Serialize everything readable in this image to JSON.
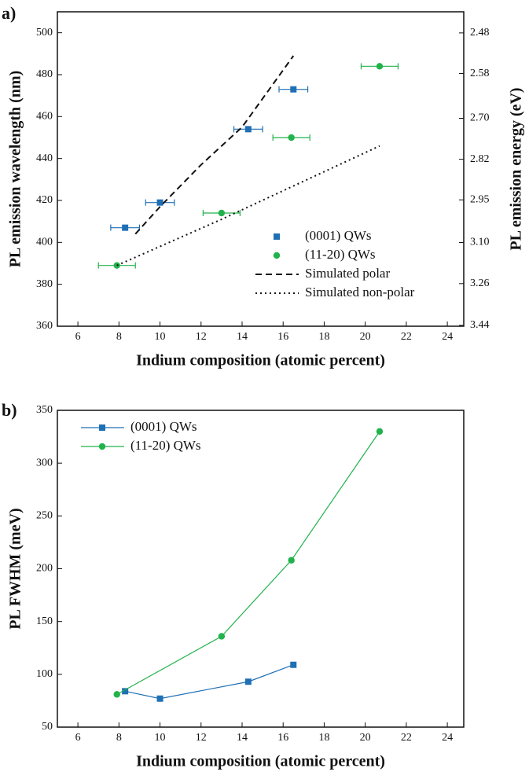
{
  "chart_data": [
    {
      "type": "scatter",
      "panel_label": "a)",
      "xlabel": "Indium composition (atomic percent)",
      "ylabel": "PL emission wavelength (nm)",
      "y2label": "PL emission energy (eV)",
      "xlim": [
        5,
        24.8
      ],
      "xticks": [
        6,
        8,
        10,
        12,
        14,
        16,
        18,
        20,
        22,
        24
      ],
      "ylim": [
        360,
        510
      ],
      "yticks": [
        360,
        380,
        400,
        420,
        440,
        460,
        480,
        500
      ],
      "y2lim": [
        3.444,
        2.431
      ],
      "y2scale": "reciprocal",
      "y2ticks": [
        2.48,
        2.58,
        {
          "value": 2.7,
          "label": "2.70"
        },
        2.82,
        2.95,
        {
          "value": 3.1,
          "label": "3.10"
        },
        3.26,
        3.44
      ],
      "legend": "lower right",
      "series": [
        {
          "name": "(0001) QWs",
          "color": "#1f6fb5",
          "marker": "square",
          "line": "none",
          "x": [
            8.3,
            10,
            14.3,
            16.5
          ],
          "values": [
            407,
            419,
            454,
            473
          ],
          "xerr": [
            0.7,
            0.7,
            0.7,
            0.7
          ]
        },
        {
          "name": "(11-20) QWs",
          "color": "#22b24c",
          "marker": "circle",
          "line": "none",
          "x": [
            7.9,
            13,
            16.4,
            20.7
          ],
          "values": [
            389,
            414,
            450,
            484
          ],
          "xerr": [
            0.9,
            0.9,
            0.9,
            0.9
          ]
        },
        {
          "name": "Simulated polar",
          "color": "#111111",
          "marker": "none",
          "line": "dashed",
          "x": [
            8.8,
            10,
            12,
            14,
            16.5
          ],
          "values": [
            404,
            417,
            437,
            455,
            489
          ]
        },
        {
          "name": "Simulated non-polar",
          "color": "#111111",
          "marker": "none",
          "line": "dotted",
          "x": [
            7.9,
            13,
            20.7
          ],
          "values": [
            389,
            411,
            446
          ]
        }
      ]
    },
    {
      "type": "line",
      "panel_label": "b)",
      "xlabel": "Indium composition (atomic percent)",
      "ylabel": "PL FWHM (meV)",
      "xlim": [
        5,
        24.8
      ],
      "xticks": [
        6,
        8,
        10,
        12,
        14,
        16,
        18,
        20,
        22,
        24
      ],
      "ylim": [
        50,
        350
      ],
      "yticks": [
        50,
        100,
        150,
        200,
        250,
        300,
        350
      ],
      "legend": "upper left",
      "series": [
        {
          "name": "(0001) QWs",
          "color": "#1f6fb5",
          "marker": "square",
          "line": "solid",
          "x": [
            8.3,
            10,
            14.3,
            16.5
          ],
          "values": [
            84,
            77,
            93,
            109
          ]
        },
        {
          "name": "(11-20) QWs",
          "color": "#22b24c",
          "marker": "circle",
          "line": "solid",
          "x": [
            7.9,
            13,
            16.4,
            20.7
          ],
          "values": [
            81,
            136,
            208,
            330
          ]
        }
      ]
    }
  ]
}
